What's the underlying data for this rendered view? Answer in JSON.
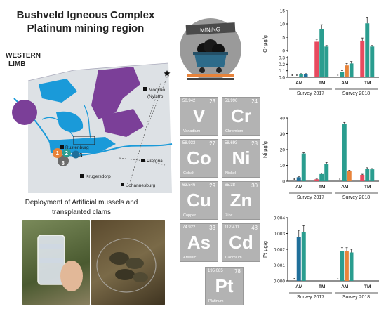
{
  "title_line1": "Bushveld Igneous Complex",
  "title_line2": "Platinum mining region",
  "map": {
    "western_limb_line1": "WESTERN",
    "western_limb_line2": "LIMB",
    "towns": {
      "modimolle": "Modimo",
      "nylstroom": "(Nylstro",
      "rustenburg": "Rustenburg",
      "pretoria": "Pretoria",
      "krugersdorp": "Krugersdorp",
      "johannesburg": "Johannesburg"
    },
    "sites": [
      "1",
      "2",
      "3",
      "8"
    ],
    "colors": {
      "water": "#1a9ad9",
      "complex": "#7b3f98",
      "land": "#d9dde1",
      "site1": "#e8833a",
      "site2": "#2a9d8f",
      "site3": "#1f6f9a",
      "site8": "#6b6b6b"
    }
  },
  "deploy_line1": "Deployment of Artificial mussels and",
  "deploy_line2": "transplanted clams",
  "mining_icon_label": "MINING",
  "elements": [
    {
      "symbol": "V",
      "name": "Vanadium",
      "number": "23",
      "mass": "50.942"
    },
    {
      "symbol": "Cr",
      "name": "Chromium",
      "number": "24",
      "mass": "51.996"
    },
    {
      "symbol": "Co",
      "name": "Cobalt",
      "number": "27",
      "mass": "58.933"
    },
    {
      "symbol": "Ni",
      "name": "Nickel",
      "number": "28",
      "mass": "58.693"
    },
    {
      "symbol": "Cu",
      "name": "Copper",
      "number": "29",
      "mass": "63.546"
    },
    {
      "symbol": "Zn",
      "name": "Zinc",
      "number": "30",
      "mass": "65.38"
    },
    {
      "symbol": "As",
      "name": "Arsenic",
      "number": "33",
      "mass": "74.922"
    },
    {
      "symbol": "Cd",
      "name": "Cadmium",
      "number": "48",
      "mass": "112.411"
    },
    {
      "symbol": "Pt",
      "name": "Platinum",
      "number": "78",
      "mass": "195.085"
    }
  ],
  "chart_data": [
    {
      "type": "bar",
      "ylabel": "Cr µg/g",
      "axis_break": true,
      "yticks_upper": [
        "0",
        "5",
        "10",
        "15"
      ],
      "yticks_lower": [
        "0.0",
        "0.1",
        "0.2",
        "0.3"
      ],
      "groups": [
        "AM",
        "TM",
        "AM",
        "TM"
      ],
      "surveys": [
        "Survey 2017",
        "Survey 2018"
      ],
      "site_colors": [
        "#e8833a",
        "#e84a5f",
        "#2a9d8f",
        "#1f6f9a",
        "#6b6b6b"
      ],
      "values": [
        [
          0,
          0,
          0.05,
          0.05
        ],
        [
          3.3,
          8.1,
          1.5
        ],
        [
          0,
          0.08,
          0.18,
          0.21
        ],
        [
          3.7,
          10.2,
          1.5
        ]
      ],
      "error": [
        [
          0,
          0,
          0.005,
          0.005
        ],
        [
          0.9,
          1.6,
          0.4
        ],
        [
          0,
          0.02,
          0.03,
          0.03
        ],
        [
          1.0,
          2.3,
          0.4
        ]
      ],
      "nd_marks": [
        1,
        1,
        1,
        1
      ]
    },
    {
      "type": "bar",
      "ylabel": "Ni µg/g",
      "yticks": [
        "0",
        "10",
        "20",
        "30",
        "40"
      ],
      "ylim": [
        0,
        40
      ],
      "groups": [
        "AM",
        "TM",
        "AM",
        "TM"
      ],
      "surveys": [
        "Survey 2017",
        "Survey 2018"
      ],
      "values": [
        [
          0,
          2.5,
          17.5
        ],
        [
          1.2,
          4.5,
          11.0
        ],
        [
          0,
          36.0,
          6.5
        ],
        [
          4.0,
          8.0,
          7.5
        ]
      ],
      "error": [
        [
          0,
          0.3,
          0.5
        ],
        [
          0.2,
          0.6,
          0.8
        ],
        [
          0,
          1.2,
          0.4
        ],
        [
          0.4,
          0.5,
          0.5
        ]
      ],
      "nd_marks": [
        1,
        0,
        1,
        0
      ]
    },
    {
      "type": "bar",
      "ylabel": "Pt µg/g",
      "yticks": [
        "0.000",
        "0.001",
        "0.002",
        "0.003",
        "0.004"
      ],
      "ylim": [
        0,
        0.004
      ],
      "groups": [
        "AM",
        "TM",
        "AM",
        "TM"
      ],
      "surveys": [
        "Survey 2017",
        "Survey 2018"
      ],
      "values": [
        [
          0,
          0.0028,
          0.0031
        ],
        [],
        [
          0,
          0.0019,
          0.0019,
          0.0018
        ],
        []
      ],
      "error": [
        [
          0,
          0.0004,
          0.0004
        ],
        [],
        [
          0,
          0.0002,
          0.0002,
          0.0002
        ],
        []
      ],
      "nd_marks": [
        1,
        0,
        1,
        0
      ]
    }
  ]
}
